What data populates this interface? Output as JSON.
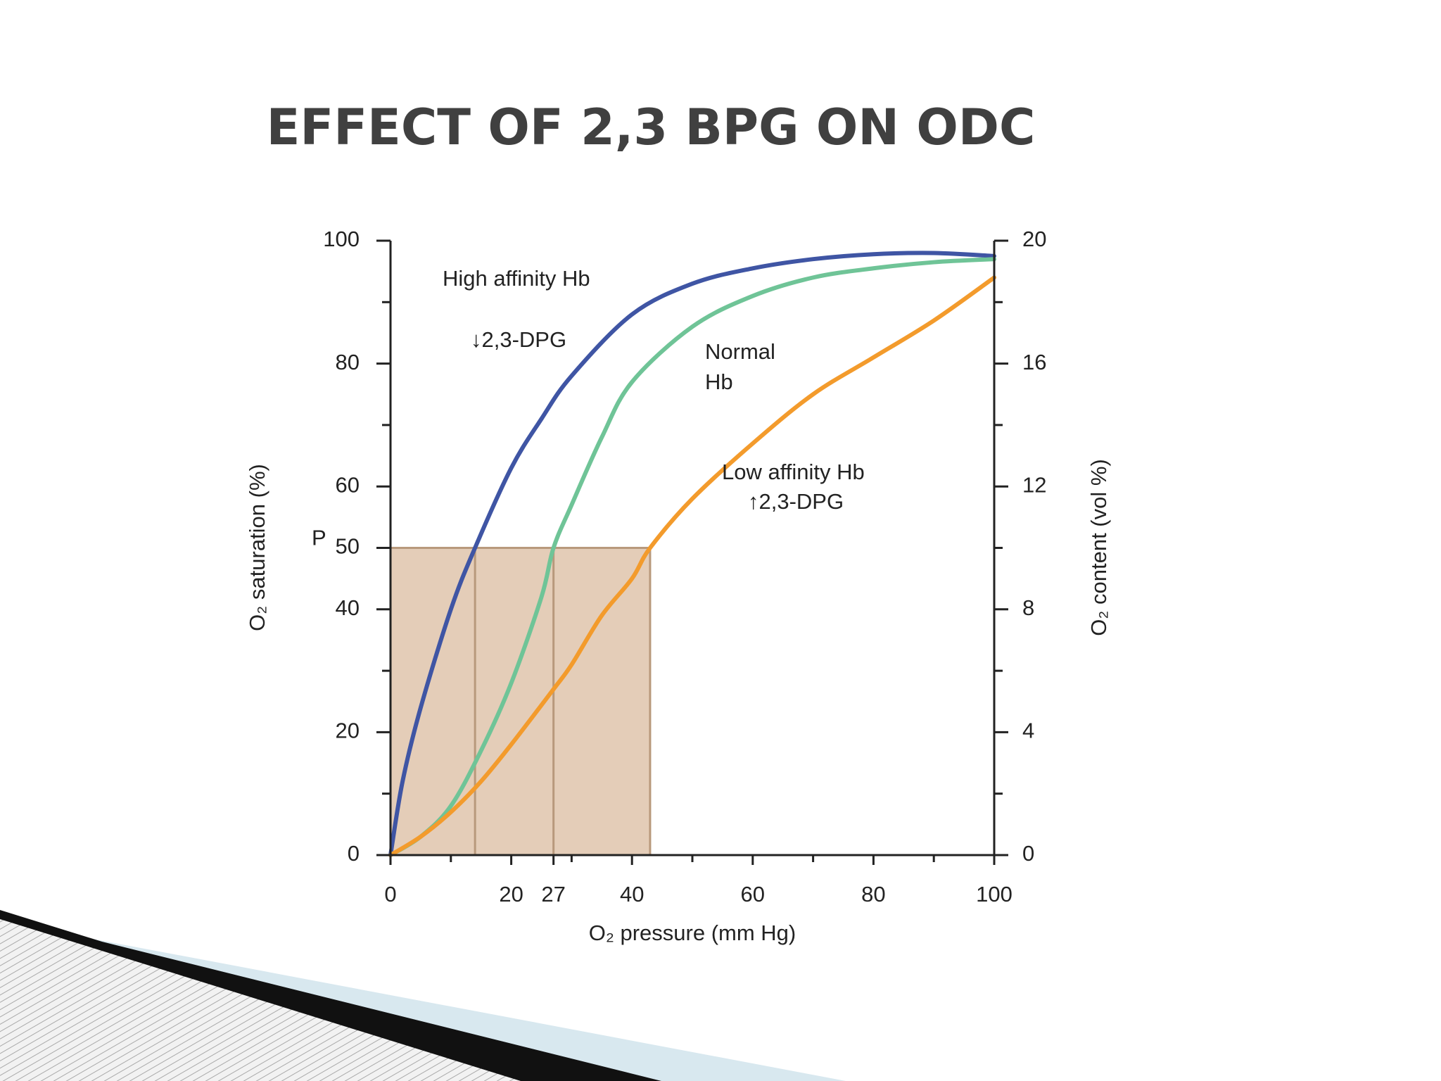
{
  "title": "EFFECT OF 2,3 BPG ON ODC",
  "chart_data": {
    "type": "line",
    "xlabel": "O₂ pressure (mm Hg)",
    "ylabel": "O₂ saturation (%)",
    "y2label": "O₂ content (vol %)",
    "xlim": [
      0,
      100
    ],
    "xticks": [
      0,
      20,
      27,
      40,
      60,
      80,
      100
    ],
    "xminorticks": [
      10,
      30,
      50,
      70,
      90
    ],
    "ylim": [
      0,
      100
    ],
    "yticks": [
      0,
      20,
      40,
      50,
      60,
      80,
      100
    ],
    "yminorticks": [
      10,
      30,
      70,
      90
    ],
    "y2lim": [
      0,
      20
    ],
    "y2ticks": [
      0,
      4,
      8,
      12,
      16,
      20
    ],
    "y2minorticks": [
      2,
      6,
      10,
      14,
      18
    ],
    "p50": 50,
    "p50_x": [
      14,
      27,
      43
    ],
    "p50_label": "P",
    "p50_color": "#e4cdb8",
    "series": [
      {
        "color": "#3f55a4",
        "x": [
          0,
          2,
          5,
          10,
          14,
          20,
          25,
          30,
          40,
          50,
          60,
          70,
          80,
          90,
          100
        ],
        "values": [
          0,
          12,
          24,
          40,
          50,
          63,
          71,
          78,
          88,
          93,
          95.5,
          97,
          97.8,
          98,
          97.5
        ]
      },
      {
        "color": "#6fc497",
        "x": [
          0,
          5,
          10,
          15,
          20,
          25,
          27,
          30,
          35,
          40,
          50,
          60,
          70,
          80,
          90,
          100
        ],
        "values": [
          0,
          3,
          8,
          17,
          28,
          42,
          50,
          57,
          68,
          77,
          86,
          91,
          94,
          95.5,
          96.5,
          97
        ]
      },
      {
        "color": "#f39b2c",
        "x": [
          0,
          5,
          10,
          15,
          20,
          27,
          30,
          35,
          40,
          43,
          50,
          60,
          70,
          80,
          90,
          100
        ],
        "values": [
          0,
          3,
          7,
          12,
          18,
          27,
          31,
          39,
          45,
          50,
          58,
          67,
          75,
          81,
          87,
          94
        ]
      }
    ],
    "annotations": [
      "High affinity Hb",
      "↓2,3-DPG",
      "Normal",
      "Hb",
      "Low affinity Hb",
      "↑2,3-DPG"
    ]
  }
}
